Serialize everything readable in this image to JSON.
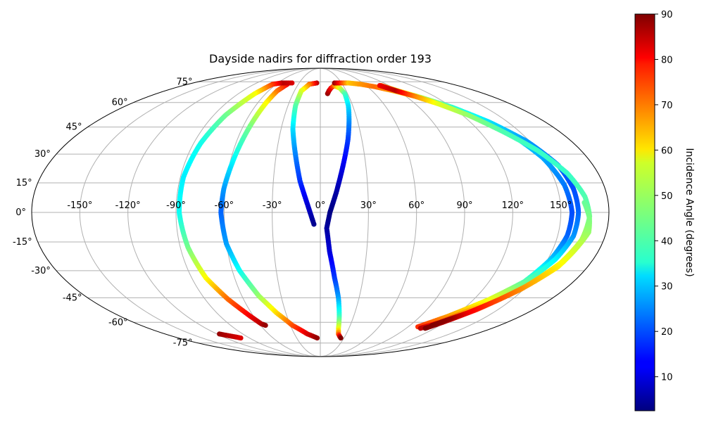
{
  "chart_data": {
    "type": "scatter",
    "projection": "mollweide",
    "title": "Dayside nadirs for diffraction order 193",
    "longitude_ticks": [
      "-150°",
      "-120°",
      "-90°",
      "-60°",
      "-30°",
      "0°",
      "30°",
      "60°",
      "90°",
      "120°",
      "150°"
    ],
    "latitude_ticks": [
      "75°",
      "60°",
      "45°",
      "30°",
      "15°",
      "0°",
      "-15°",
      "-30°",
      "-45°",
      "-60°",
      "-75°"
    ],
    "longitude_tick_values": [
      -150,
      -120,
      -90,
      -60,
      -30,
      0,
      30,
      60,
      90,
      120,
      150
    ],
    "latitude_tick_values": [
      75,
      60,
      45,
      30,
      15,
      0,
      -15,
      -30,
      -45,
      -60,
      -75
    ],
    "grid": true,
    "colormap": "jet",
    "colorbar": {
      "label": "Incidence Angle (degrees)",
      "range": [
        2.5,
        90
      ],
      "ticks": [
        "10",
        "20",
        "30",
        "40",
        "50",
        "60",
        "70",
        "80",
        "90"
      ],
      "tick_values": [
        10,
        20,
        30,
        40,
        50,
        60,
        70,
        80,
        90
      ]
    },
    "series": [
      {
        "points": [
          [
            8,
            66,
            88
          ],
          [
            10,
            68,
            85
          ],
          [
            13,
            70,
            80
          ],
          [
            18,
            72,
            70
          ],
          [
            24,
            70,
            55
          ],
          [
            27,
            66,
            42
          ],
          [
            26,
            58,
            33
          ],
          [
            23,
            48,
            26
          ],
          [
            20,
            38,
            19
          ],
          [
            15,
            24,
            12
          ],
          [
            10,
            10,
            6
          ],
          [
            6,
            0,
            3
          ],
          [
            4,
            -8,
            5
          ],
          [
            6,
            -20,
            10
          ],
          [
            10,
            -34,
            18
          ],
          [
            14,
            -45,
            27
          ],
          [
            17,
            -56,
            40
          ],
          [
            19,
            -64,
            55
          ],
          [
            21,
            -68,
            70
          ],
          [
            24,
            -70,
            84
          ],
          [
            26,
            -71,
            90
          ]
        ]
      },
      {
        "points": [
          [
            -5,
            74,
            85
          ],
          [
            -15,
            73,
            70
          ],
          [
            -22,
            68,
            55
          ],
          [
            -23,
            58,
            43
          ],
          [
            -21,
            44,
            33
          ],
          [
            -17,
            30,
            25
          ],
          [
            -13,
            16,
            18
          ],
          [
            -8,
            4,
            10
          ],
          [
            -4,
            -6,
            4
          ]
        ]
      },
      {
        "points": [
          [
            -45,
            73,
            80
          ],
          [
            -50,
            68,
            70
          ],
          [
            -52,
            60,
            58
          ],
          [
            -55,
            44,
            45
          ],
          [
            -58,
            28,
            36
          ],
          [
            -61,
            12,
            27
          ],
          [
            -62,
            0,
            22
          ],
          [
            -60,
            -16,
            27
          ],
          [
            -55,
            -30,
            36
          ],
          [
            -47,
            -44,
            48
          ],
          [
            -38,
            -54,
            60
          ],
          [
            -28,
            -62,
            72
          ],
          [
            -15,
            -68,
            82
          ],
          [
            -4,
            -71,
            88
          ]
        ]
      },
      {
        "points": [
          [
            -40,
            74,
            82
          ],
          [
            -55,
            74,
            85
          ],
          [
            -65,
            73,
            75
          ],
          [
            -72,
            66,
            57
          ],
          [
            -80,
            52,
            45
          ],
          [
            -85,
            36,
            37
          ],
          [
            -88,
            18,
            34
          ],
          [
            -88,
            0,
            36
          ],
          [
            -85,
            -18,
            45
          ],
          [
            -80,
            -34,
            57
          ],
          [
            -72,
            -46,
            70
          ],
          [
            -63,
            -56,
            80
          ],
          [
            -58,
            -61,
            85
          ],
          [
            -55,
            -62,
            88
          ]
        ]
      },
      {
        "points": [
          [
            -117,
            -68,
            88
          ],
          [
            -112,
            -69,
            86
          ],
          [
            -106,
            -70,
            84
          ],
          [
            -101,
            -71,
            82
          ]
        ]
      },
      {
        "points": [
          [
            20,
            74,
            88
          ],
          [
            40,
            74,
            62
          ],
          [
            55,
            73,
            66
          ],
          [
            70,
            71,
            70
          ],
          [
            85,
            68,
            65
          ],
          [
            100,
            64,
            55
          ],
          [
            115,
            58,
            45
          ],
          [
            130,
            50,
            38
          ],
          [
            142,
            40,
            32
          ],
          [
            150,
            28,
            28
          ],
          [
            155,
            14,
            24
          ],
          [
            157,
            0,
            20
          ],
          [
            156,
            -12,
            22
          ],
          [
            152,
            -24,
            30
          ],
          [
            145,
            -36,
            42
          ],
          [
            132,
            -46,
            55
          ],
          [
            115,
            -56,
            65
          ],
          [
            100,
            -63,
            75
          ]
        ]
      },
      {
        "points": [
          [
            80,
            72,
            70
          ],
          [
            90,
            68,
            62
          ],
          [
            105,
            63,
            50
          ],
          [
            120,
            57,
            40
          ],
          [
            135,
            48,
            33
          ],
          [
            148,
            37,
            27
          ],
          [
            157,
            24,
            22
          ],
          [
            160,
            12,
            20
          ],
          [
            161,
            0,
            22
          ],
          [
            160,
            -12,
            26
          ],
          [
            155,
            -24,
            34
          ],
          [
            145,
            -38,
            45
          ],
          [
            130,
            -50,
            60
          ],
          [
            115,
            -60,
            75
          ],
          [
            105,
            -64,
            85
          ]
        ]
      },
      {
        "points": [
          [
            78,
            72,
            80
          ],
          [
            88,
            68,
            85
          ],
          [
            100,
            64,
            68
          ],
          [
            112,
            59,
            55
          ],
          [
            125,
            52,
            48
          ],
          [
            138,
            42,
            42
          ],
          [
            150,
            32,
            40
          ],
          [
            160,
            20,
            40
          ],
          [
            166,
            8,
            42
          ],
          [
            168,
            -2,
            45
          ],
          [
            166,
            -14,
            50
          ],
          [
            160,
            -26,
            57
          ],
          [
            148,
            -40,
            66
          ],
          [
            132,
            -52,
            75
          ],
          [
            118,
            -60,
            85
          ],
          [
            110,
            -64,
            90
          ]
        ]
      },
      {
        "points": [
          [
            165,
            5,
            44
          ],
          [
            168,
            -3,
            46
          ],
          [
            169,
            -10,
            48
          ],
          [
            160,
            -28,
            58
          ],
          [
            150,
            -38,
            65
          ],
          [
            140,
            -46,
            72
          ],
          [
            128,
            -54,
            80
          ],
          [
            120,
            -58,
            88
          ],
          [
            112,
            -62,
            90
          ]
        ]
      }
    ]
  }
}
